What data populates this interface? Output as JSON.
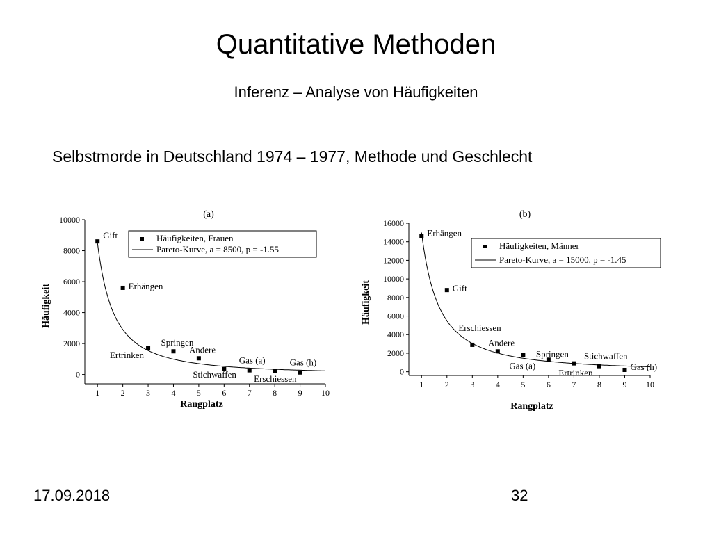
{
  "slide": {
    "title": "Quantitative Methoden",
    "subtitle": "Inferenz – Analyse von Häufigkeiten",
    "heading": "Selbstmorde in Deutschland 1974 – 1977, Methode und Geschlecht",
    "date": "17.09.2018",
    "page_number": "32"
  },
  "chart_data": [
    {
      "type": "scatter",
      "panel_label": "(a)",
      "xlabel": "Rangplatz",
      "ylabel": "Häufigkeit",
      "xlim": [
        0.5,
        10
      ],
      "ylim": [
        -600,
        10000
      ],
      "xticks": [
        1,
        2,
        3,
        4,
        5,
        6,
        7,
        8,
        9,
        10
      ],
      "yticks": [
        0,
        2000,
        4000,
        6000,
        8000,
        10000
      ],
      "series": [
        {
          "name": "Häufigkeiten, Frauen",
          "kind": "points",
          "x": [
            1,
            2,
            3,
            4,
            5,
            6,
            7,
            8,
            9
          ],
          "y": [
            8600,
            5600,
            1700,
            1500,
            1050,
            350,
            270,
            250,
            130
          ],
          "labels": [
            "Gift",
            "Erhängen",
            "Ertrinken",
            "Springen",
            "Andere",
            "Stichwaffen",
            "Gas (a)",
            "Erschiessen",
            "Gas (h)"
          ]
        },
        {
          "name": "Pareto-Kurve, a = 8500, p = -1.55",
          "kind": "curve",
          "a": 8500,
          "p": -1.55
        }
      ],
      "legend": "top-right"
    },
    {
      "type": "scatter",
      "panel_label": "(b)",
      "xlabel": "Rangplatz",
      "ylabel": "Häufigkeit",
      "xlim": [
        0.5,
        10
      ],
      "ylim": [
        -400,
        16000
      ],
      "xticks": [
        1,
        2,
        3,
        4,
        5,
        6,
        7,
        8,
        9,
        10
      ],
      "yticks": [
        0,
        2000,
        4000,
        6000,
        8000,
        10000,
        12000,
        14000,
        16000
      ],
      "series": [
        {
          "name": "Häufigkeiten, Männer",
          "kind": "points",
          "x": [
            1,
            2,
            3,
            4,
            5,
            6,
            7,
            8,
            9
          ],
          "y": [
            14600,
            8800,
            2900,
            2200,
            1800,
            1300,
            900,
            600,
            200
          ],
          "labels": [
            "Erhängen",
            "Gift",
            "Erschiessen",
            "Andere",
            "Gas (a)",
            "Springen",
            "Ertrinken",
            "Stichwaffen",
            "Gas (h)"
          ]
        },
        {
          "name": "Pareto-Kurve, a = 15000, p = -1.45",
          "kind": "curve",
          "a": 15000,
          "p": -1.45
        }
      ],
      "legend": "top-right"
    }
  ]
}
